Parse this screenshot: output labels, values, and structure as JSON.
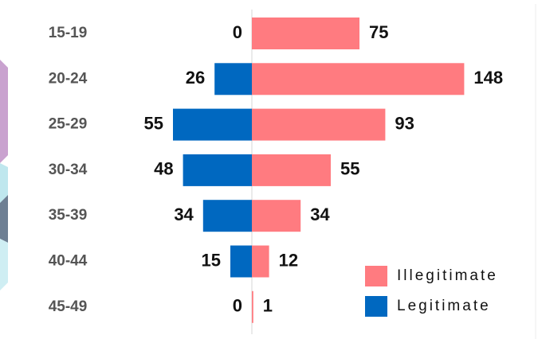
{
  "chart_data": {
    "type": "diverging-bar",
    "categories": [
      "15-19",
      "20-24",
      "25-29",
      "30-34",
      "35-39",
      "40-44",
      "45-49"
    ],
    "series": [
      {
        "name": "Illegitimate",
        "color": "#ff7b80",
        "values": [
          75,
          148,
          93,
          55,
          34,
          12,
          1
        ]
      },
      {
        "name": "Legitimate",
        "color": "#0068c0",
        "values": [
          0,
          26,
          55,
          48,
          34,
          15,
          0
        ]
      }
    ]
  }
}
